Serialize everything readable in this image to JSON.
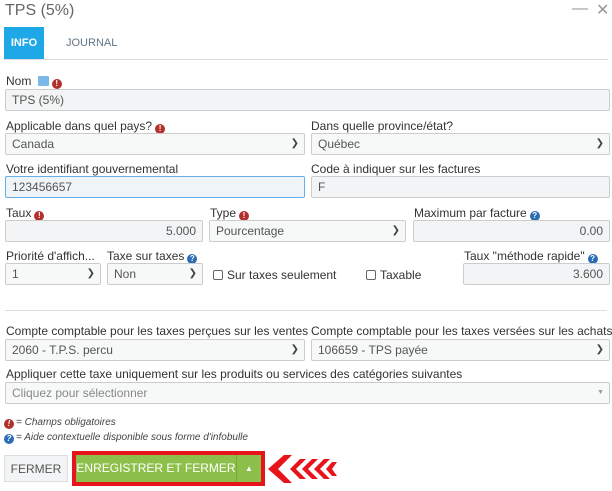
{
  "window": {
    "title": "TPS (5%)",
    "minimize": "—",
    "close": "✕"
  },
  "tabs": [
    {
      "label": "INFO",
      "active": true
    },
    {
      "label": "JOURNAL",
      "active": false
    }
  ],
  "form": {
    "nom": {
      "label": "Nom",
      "value": "TPS (5%)"
    },
    "pays": {
      "label": "Applicable dans quel pays?",
      "value": "Canada"
    },
    "province": {
      "label": "Dans quelle province/état?",
      "value": "Québec"
    },
    "identifiant": {
      "label": "Votre identifiant gouvernemental",
      "value": "123456657"
    },
    "code": {
      "label": "Code à indiquer sur les factures",
      "value": "F"
    },
    "taux": {
      "label": "Taux",
      "value": "5.000"
    },
    "type": {
      "label": "Type",
      "value": "Pourcentage"
    },
    "maximum": {
      "label": "Maximum par facture",
      "value": "0.00"
    },
    "priorite": {
      "label": "Priorité d'affich...",
      "value": "1"
    },
    "taxe_sur_taxes": {
      "label": "Taxe sur taxes",
      "value": "Non"
    },
    "sur_taxes_seulement": {
      "label": "Sur taxes seulement",
      "checked": false
    },
    "taxable": {
      "label": "Taxable",
      "checked": false
    },
    "taux_rapide": {
      "label": "Taux \"méthode rapide\"",
      "value": "3.600"
    },
    "compte_ventes": {
      "label": "Compte comptable pour les taxes perçues sur les ventes",
      "value": "2060 - T.P.S. percu"
    },
    "compte_achats": {
      "label": "Compte comptable pour les taxes versées sur les achats",
      "value": "106659 - TPS payée"
    },
    "categories": {
      "label": "Appliquer cette taxe uniquement sur les produits ou services des catégories suivantes",
      "placeholder": "Cliquez pour sélectionner"
    }
  },
  "legend": {
    "required": "= Champs obligatoires",
    "help": "= Aide contextuelle disponible sous forme d'infobulle"
  },
  "buttons": {
    "close": "FERMER",
    "save_close": "ENREGISTRER ET FERMER"
  },
  "colors": {
    "accent": "#1ea8e8",
    "save": "#8cc04a",
    "highlight": "#e8141c"
  }
}
